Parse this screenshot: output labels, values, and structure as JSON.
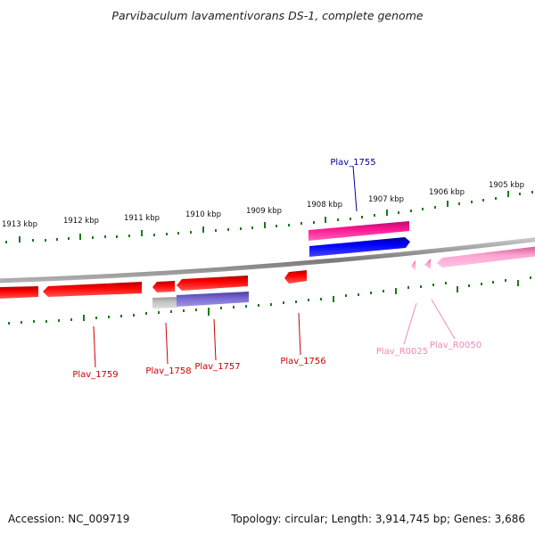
{
  "title": "Parvibaculum lavamentivorans DS-1, complete genome",
  "footer": {
    "accession": "Accession: NC_009719",
    "summary": "Topology: circular; Length: 3,914,745 bp; Genes: 3,686"
  },
  "scale_labels": [
    "1913 kbp",
    "1912 kbp",
    "1911 kbp",
    "1910 kbp",
    "1909 kbp",
    "1908 kbp",
    "1907 kbp",
    "1906 kbp",
    "1905 kbp"
  ],
  "genes": [
    {
      "name": "Plav_1755",
      "color": "#000099"
    },
    {
      "name": "Plav_1756",
      "color": "#cc0000"
    },
    {
      "name": "Plav_1757",
      "color": "#cc0000"
    },
    {
      "name": "Plav_1758",
      "color": "#cc0000"
    },
    {
      "name": "Plav_1759",
      "color": "#cc0000"
    },
    {
      "name": "Plav_R0025",
      "color": "#ee88bb"
    },
    {
      "name": "Plav_R0050",
      "color": "#ee88bb"
    }
  ],
  "colors": {
    "backbone": "#888888",
    "ticks": "#1a7a1a",
    "cds_forward": "#ff0000",
    "rna": "#ff99cc",
    "pink_gene": "#ff1493",
    "blue_gene": "#0000ff",
    "purple_gene": "#7060cc",
    "gray_gene": "#bbbbbb"
  }
}
